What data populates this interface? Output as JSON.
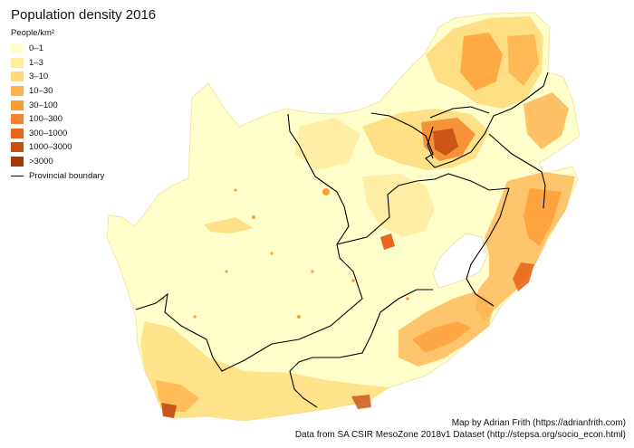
{
  "title": "Population density 2016",
  "legend": {
    "heading": "People/km²",
    "classes": [
      {
        "label": "0–1",
        "color": "#ffffcc"
      },
      {
        "label": "1–3",
        "color": "#ffeda0"
      },
      {
        "label": "3–10",
        "color": "#fed976"
      },
      {
        "label": "10–30",
        "color": "#feb24c"
      },
      {
        "label": "30–100",
        "color": "#fd9b35"
      },
      {
        "label": "100–300",
        "color": "#f5842a"
      },
      {
        "label": "300–1000",
        "color": "#e8671c"
      },
      {
        "label": "1000–3000",
        "color": "#c84f12"
      },
      {
        "label": ">3000",
        "color": "#a03a0a"
      }
    ],
    "boundary_label": "Provincial boundary"
  },
  "credits": {
    "line1": "Map by Adrian Frith (https://adrianfrith.com)",
    "line2": "Data from SA CSIR MesoZone 2018v1 Dataset (http://stepsa.org/socio_econ.html)"
  }
}
